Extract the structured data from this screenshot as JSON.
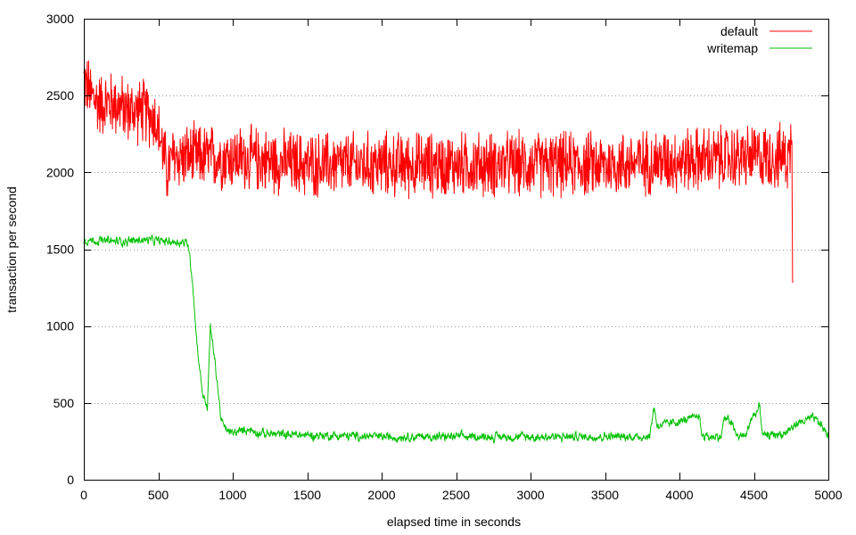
{
  "chart_data": {
    "type": "line",
    "title": "",
    "xlabel": "elapsed time in seconds",
    "ylabel": "transaction per second",
    "xlim": [
      0,
      5000
    ],
    "ylim": [
      0,
      3000
    ],
    "xticks": [
      0,
      500,
      1000,
      1500,
      2000,
      2500,
      3000,
      3500,
      4000,
      4500,
      5000
    ],
    "yticks": [
      0,
      500,
      1000,
      1500,
      2000,
      2500,
      3000
    ],
    "grid": "horizontal-dotted",
    "legend_position": "top-right",
    "series": [
      {
        "name": "default",
        "color": "#ff0000",
        "noise": 250,
        "x_end": 4760,
        "x": [
          0,
          50,
          100,
          200,
          300,
          400,
          480,
          530,
          560,
          600,
          700,
          800,
          1000,
          1200,
          1500,
          1800,
          2000,
          2200,
          2500,
          3000,
          3500,
          4000,
          4500,
          4700,
          4740,
          4755,
          4760
        ],
        "values": [
          2600,
          2500,
          2450,
          2450,
          2400,
          2400,
          2350,
          2150,
          2000,
          2100,
          2100,
          2100,
          2100,
          2080,
          2050,
          2050,
          2050,
          2050,
          2050,
          2050,
          2050,
          2080,
          2100,
          2100,
          2100,
          2300,
          1400
        ]
      },
      {
        "name": "writemap",
        "color": "#00c000",
        "noise": 60,
        "x_end": 5000,
        "x": [
          0,
          200,
          400,
          600,
          700,
          730,
          750,
          780,
          800,
          830,
          850,
          870,
          900,
          920,
          950,
          1000,
          1100,
          1200,
          1500,
          2000,
          2500,
          3000,
          3500,
          3800,
          3830,
          3850,
          3900,
          4000,
          4100,
          4130,
          4150,
          4200,
          4280,
          4300,
          4350,
          4380,
          4400,
          4450,
          4480,
          4500,
          4540,
          4560,
          4580,
          4600,
          4700,
          4800,
          4900,
          4950,
          5000
        ],
        "values": [
          1560,
          1550,
          1560,
          1550,
          1540,
          1300,
          1000,
          700,
          550,
          470,
          1000,
          850,
          600,
          400,
          330,
          300,
          330,
          300,
          290,
          280,
          280,
          280,
          280,
          280,
          480,
          350,
          360,
          380,
          400,
          430,
          290,
          280,
          280,
          400,
          380,
          290,
          280,
          290,
          400,
          420,
          470,
          290,
          280,
          290,
          300,
          370,
          400,
          360,
          280
        ]
      }
    ]
  }
}
